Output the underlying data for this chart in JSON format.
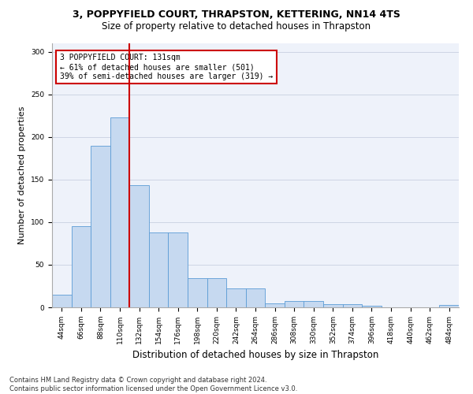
{
  "title": "3, POPPYFIELD COURT, THRAPSTON, KETTERING, NN14 4TS",
  "subtitle": "Size of property relative to detached houses in Thrapston",
  "xlabel": "Distribution of detached houses by size in Thrapston",
  "ylabel": "Number of detached properties",
  "bar_values": [
    15,
    95,
    190,
    223,
    143,
    88,
    88,
    34,
    34,
    22,
    22,
    5,
    7,
    7,
    4,
    4,
    2,
    0,
    0,
    0,
    3
  ],
  "bin_labels": [
    "44sqm",
    "66sqm",
    "88sqm",
    "110sqm",
    "132sqm",
    "154sqm",
    "176sqm",
    "198sqm",
    "220sqm",
    "242sqm",
    "264sqm",
    "286sqm",
    "308sqm",
    "330sqm",
    "352sqm",
    "374sqm",
    "396sqm",
    "418sqm",
    "440sqm",
    "462sqm",
    "484sqm"
  ],
  "bar_color": "#c6d9f0",
  "bar_edge_color": "#5b9bd5",
  "marker_color": "#cc0000",
  "annotation_title": "3 POPPYFIELD COURT: 131sqm",
  "annotation_line1": "← 61% of detached houses are smaller (501)",
  "annotation_line2": "39% of semi-detached houses are larger (319) →",
  "annotation_box_color": "#ffffff",
  "annotation_box_edge": "#cc0000",
  "ylim": [
    0,
    310
  ],
  "yticks": [
    0,
    50,
    100,
    150,
    200,
    250,
    300
  ],
  "footnote1": "Contains HM Land Registry data © Crown copyright and database right 2024.",
  "footnote2": "Contains public sector information licensed under the Open Government Licence v3.0.",
  "bg_color": "#eef2fa",
  "title_fontsize": 9,
  "subtitle_fontsize": 8.5,
  "ylabel_fontsize": 8,
  "xlabel_fontsize": 8.5,
  "tick_fontsize": 6.5,
  "annot_fontsize": 7,
  "footnote_fontsize": 6
}
